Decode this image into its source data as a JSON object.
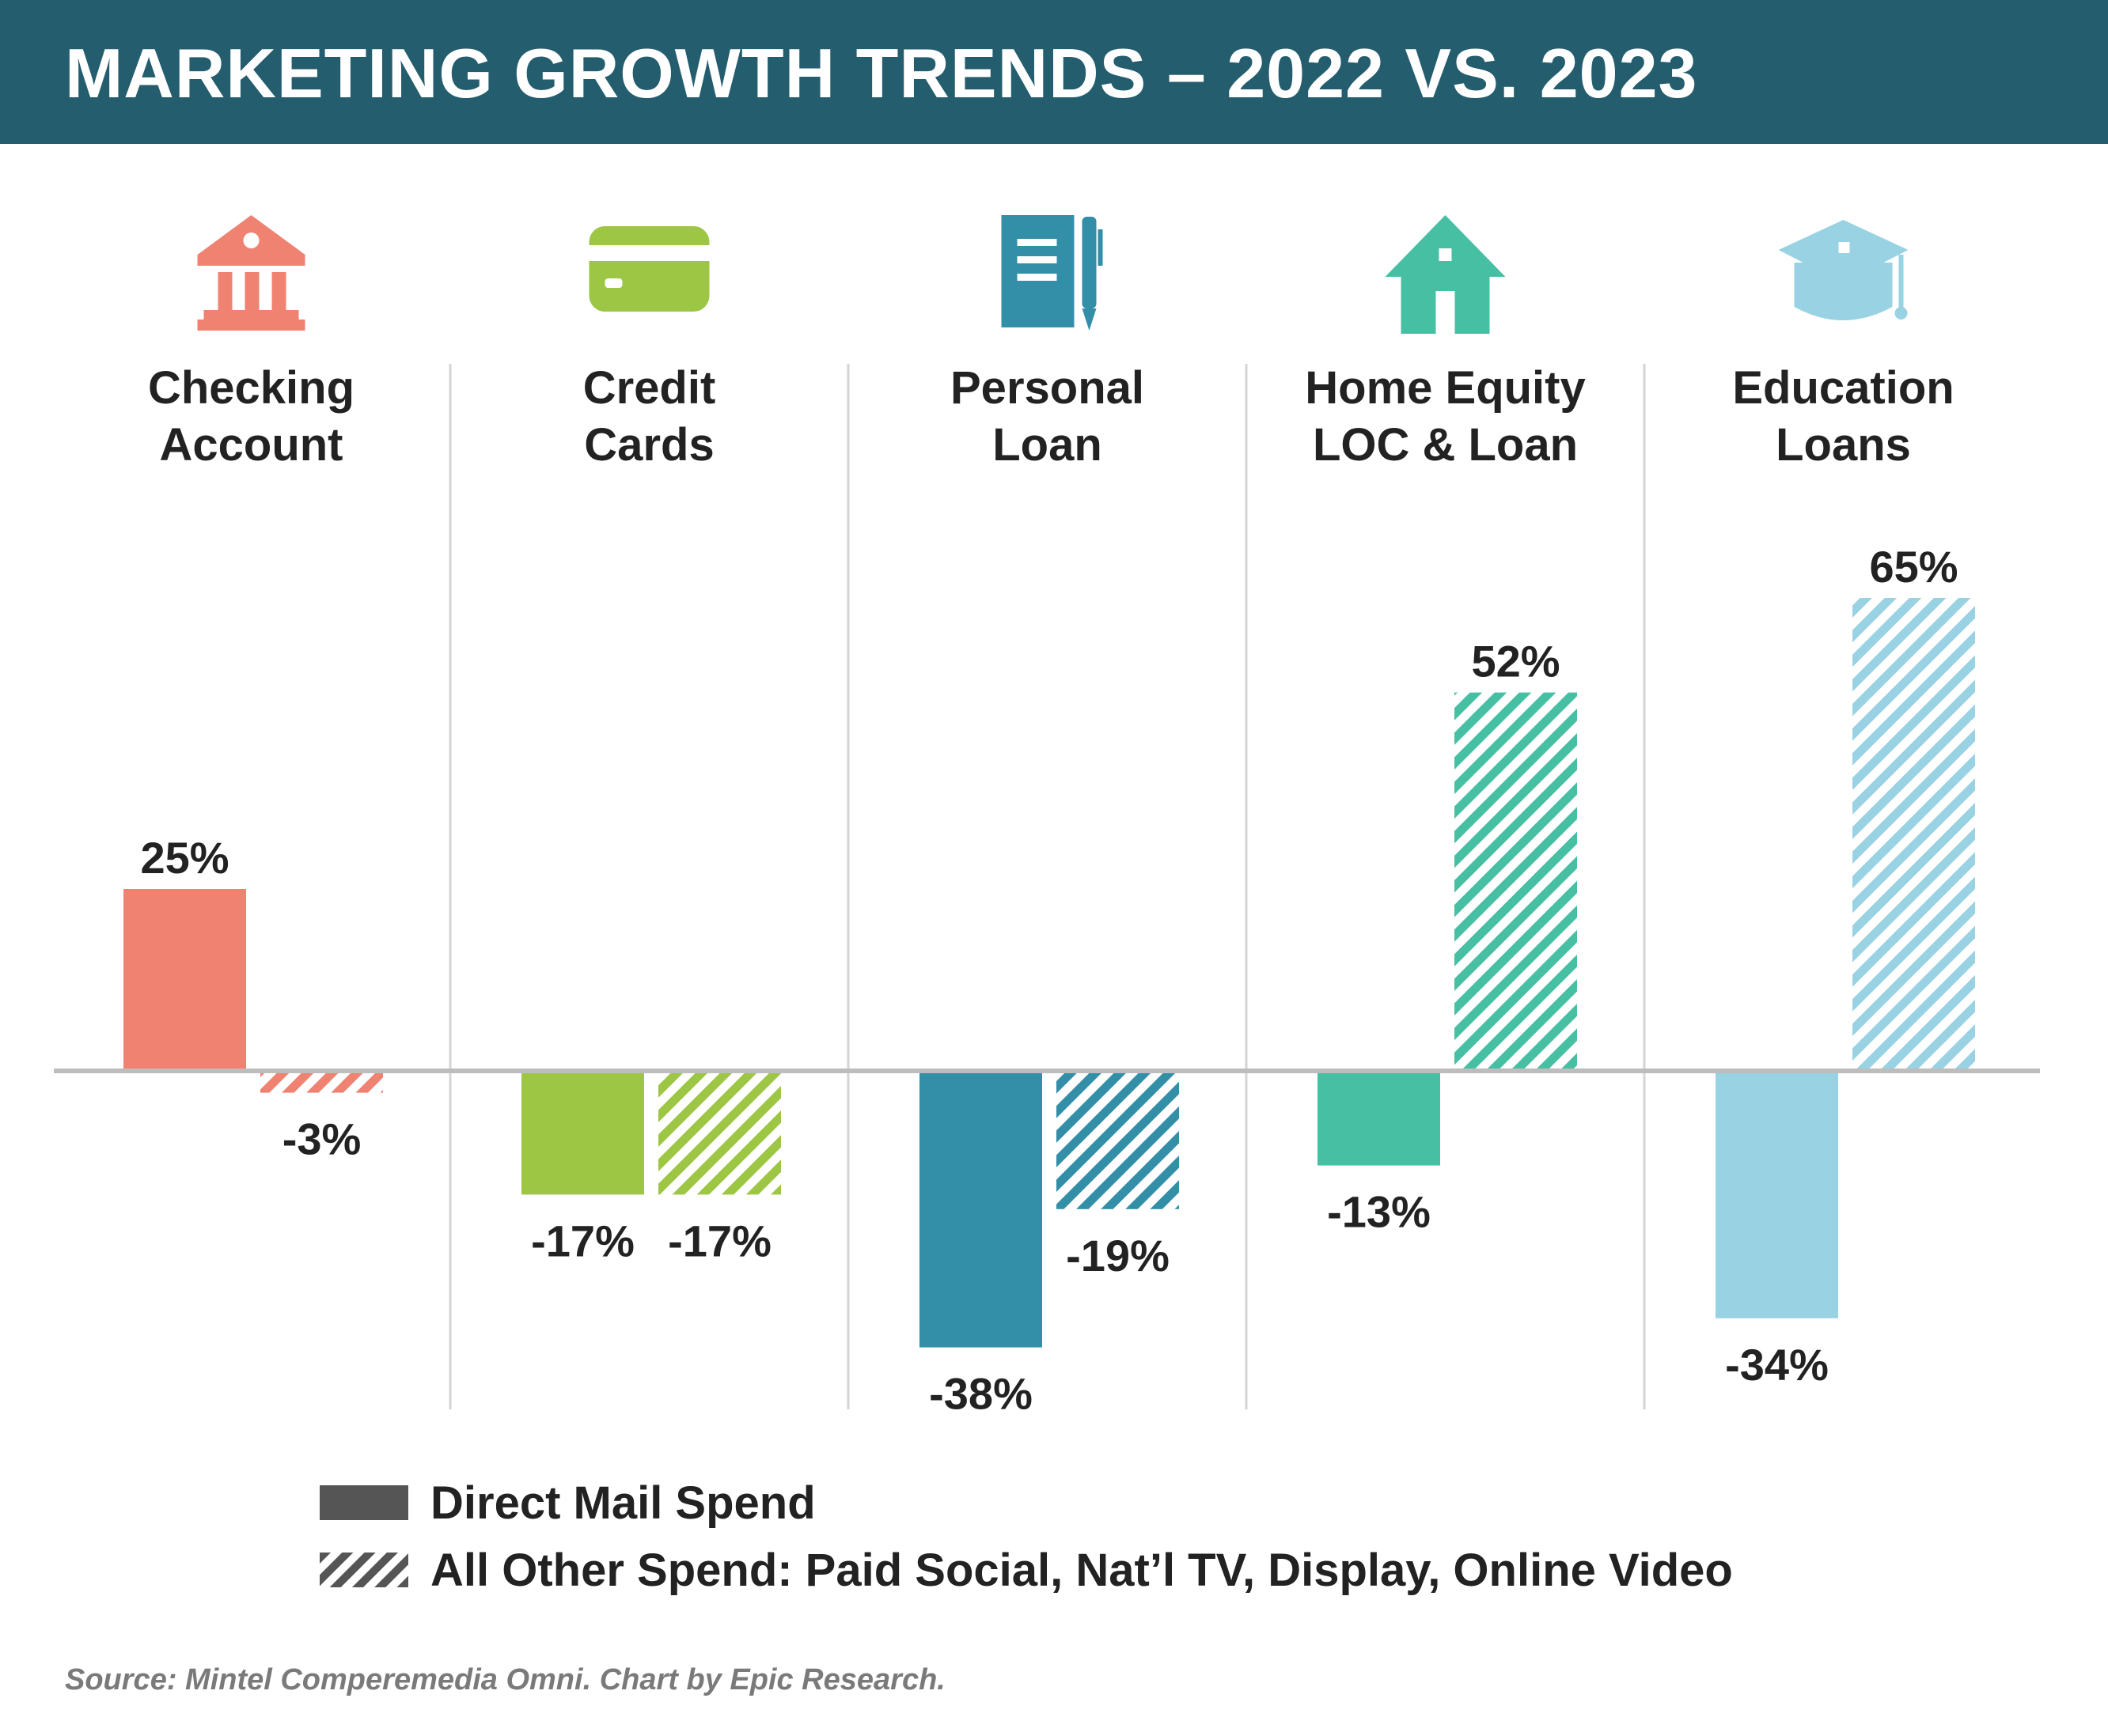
{
  "header": {
    "title": "MARKETING GROWTH TRENDS – 2022 VS. 2023"
  },
  "chart_data": {
    "type": "bar",
    "title": "MARKETING GROWTH TRENDS – 2022 VS. 2023",
    "categories": [
      {
        "line1": "Checking",
        "line2": "Account",
        "icon": "bank-icon",
        "color": "#f08272"
      },
      {
        "line1": "Credit",
        "line2": "Cards",
        "icon": "credit-card-icon",
        "color": "#9cc644"
      },
      {
        "line1": "Personal",
        "line2": "Loan",
        "icon": "document-pen-icon",
        "color": "#338ea8"
      },
      {
        "line1": "Home Equity",
        "line2": "LOC & Loan",
        "icon": "house-icon",
        "color": "#47bfa3"
      },
      {
        "line1": "Education",
        "line2": "Loans",
        "icon": "graduation-cap-icon",
        "color": "#99d2e3"
      }
    ],
    "series": [
      {
        "name": "Direct Mail Spend",
        "style": "solid",
        "values": [
          25,
          -17,
          -38,
          -13,
          -34
        ]
      },
      {
        "name": "All Other Spend: Paid Social, Nat’l TV, Display, Online Video",
        "style": "hatched",
        "values": [
          -3,
          -17,
          -19,
          52,
          65
        ]
      }
    ],
    "value_suffix": "%",
    "ylim": [
      -46,
      72
    ],
    "grid": false,
    "legend_position": "bottom-left"
  },
  "source": "Source: Mintel Comperemedia Omni. Chart by Epic Research."
}
